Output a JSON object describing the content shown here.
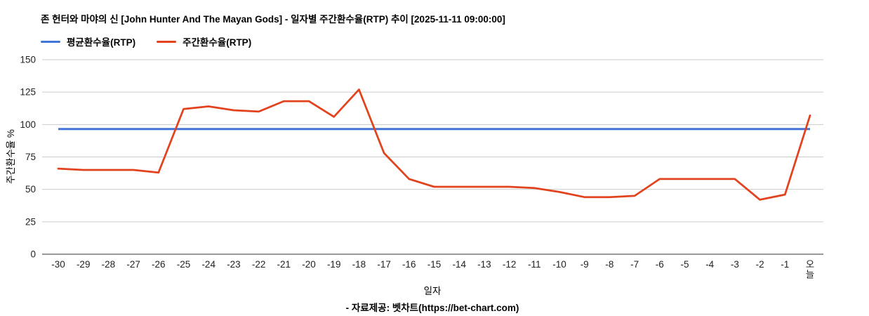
{
  "title": "존 헌터와 마야의 신 [John Hunter And The Mayan Gods] - 일자별 주간환수율(RTP) 추이 [2025-11-11 09:00:00]",
  "legend": [
    {
      "label": "평균환수율(RTP)",
      "color": "#4374d9"
    },
    {
      "label": "주간환수율(RTP)",
      "color": "#e2431e"
    }
  ],
  "x_axis_label": "일자",
  "y_axis_label": "주간환수율 %",
  "footer": "- 자료제공: 벳차트(https://bet-chart.com)",
  "colors": {
    "average_line": "#4374d9",
    "weekly_line": "#e2431e",
    "gridline": "#cccccc",
    "axis_baseline": "#333333",
    "tick_text": "#222222"
  },
  "chart_data": {
    "type": "line",
    "title": "존 헌터와 마야의 신 [John Hunter And The Mayan Gods] - 일자별 주간환수율(RTP) 추이 [2025-11-11 09:00:00]",
    "xlabel": "일자",
    "ylabel": "주간환수율 %",
    "ylim": [
      0,
      150
    ],
    "yticks": [
      0,
      25,
      50,
      75,
      100,
      125,
      150
    ],
    "grid": true,
    "legend_position": "top",
    "last_label_vertical": true,
    "categories": [
      "-30",
      "-29",
      "-28",
      "-27",
      "-26",
      "-25",
      "-24",
      "-23",
      "-22",
      "-21",
      "-20",
      "-19",
      "-18",
      "-17",
      "-16",
      "-15",
      "-14",
      "-13",
      "-12",
      "-11",
      "-10",
      "-9",
      "-8",
      "-7",
      "-6",
      "-5",
      "-4",
      "-3",
      "-2",
      "-1",
      "오늘"
    ],
    "series": [
      {
        "name": "평균환수율(RTP)",
        "color": "#4374d9",
        "constant": true,
        "value": 96.5,
        "values": [
          96.5,
          96.5,
          96.5,
          96.5,
          96.5,
          96.5,
          96.5,
          96.5,
          96.5,
          96.5,
          96.5,
          96.5,
          96.5,
          96.5,
          96.5,
          96.5,
          96.5,
          96.5,
          96.5,
          96.5,
          96.5,
          96.5,
          96.5,
          96.5,
          96.5,
          96.5,
          96.5,
          96.5,
          96.5,
          96.5,
          96.5
        ]
      },
      {
        "name": "주간환수율(RTP)",
        "color": "#e2431e",
        "constant": false,
        "values": [
          66,
          65,
          65,
          65,
          63,
          112,
          114,
          111,
          110,
          118,
          118,
          106,
          127,
          78,
          58,
          52,
          52,
          52,
          52,
          51,
          48,
          44,
          44,
          45,
          58,
          58,
          58,
          58,
          42,
          46,
          107
        ]
      }
    ]
  }
}
